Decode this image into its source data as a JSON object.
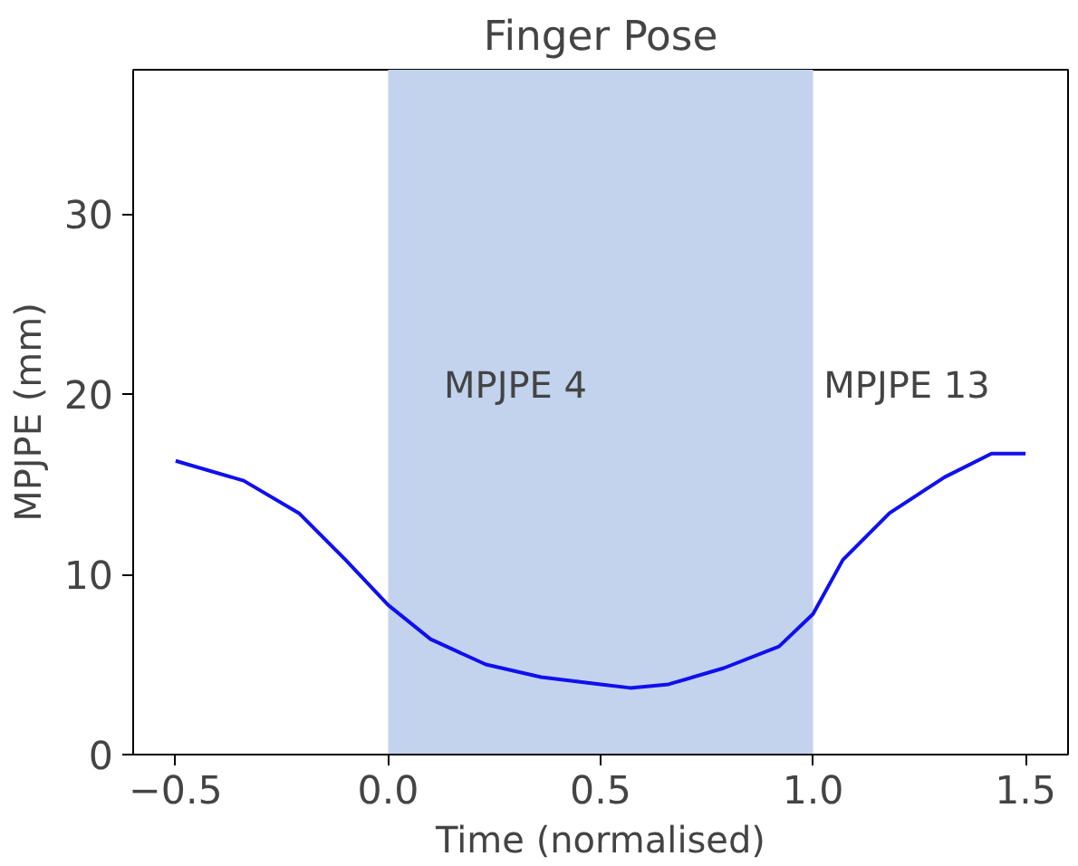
{
  "chart_data": {
    "type": "line",
    "title": "Finger Pose",
    "xlabel": "Time (normalised)",
    "ylabel": "MPJPE (mm)",
    "xlim": [
      -0.6,
      1.6
    ],
    "ylim": [
      0,
      38
    ],
    "xticks": [
      {
        "value": -0.5,
        "label": "−0.5"
      },
      {
        "value": 0,
        "label": "0.0"
      },
      {
        "value": 0.5,
        "label": "0.5"
      },
      {
        "value": 1,
        "label": "1.0"
      },
      {
        "value": 1.5,
        "label": "1.5"
      }
    ],
    "yticks": [
      0,
      10,
      20,
      30
    ],
    "grid": false,
    "bands": [
      {
        "axis": "x",
        "from": 0,
        "to": 1,
        "color": "#c3d3ee"
      }
    ],
    "annotations": [
      "MPJPE 4",
      "MPJPE 13"
    ],
    "series": [
      {
        "color": "#1010ee",
        "x": [
          -0.5,
          -0.34,
          -0.21,
          -0.1,
          0,
          0.1,
          0.23,
          0.36,
          0.5,
          0.57,
          0.66,
          0.79,
          0.92,
          1.0,
          1.07,
          1.18,
          1.31,
          1.42,
          1.5
        ],
        "values": [
          16.3,
          15.2,
          13.4,
          10.8,
          8.3,
          6.4,
          5.0,
          4.3,
          3.9,
          3.7,
          3.9,
          4.8,
          6.0,
          7.8,
          10.8,
          13.4,
          15.4,
          16.7,
          16.7
        ]
      }
    ]
  }
}
